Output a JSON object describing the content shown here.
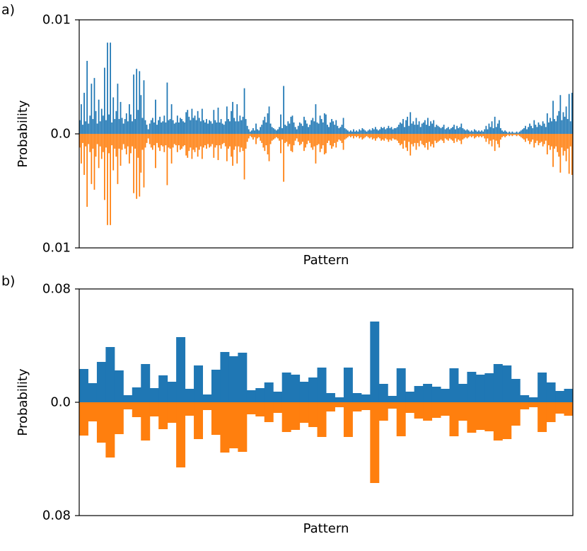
{
  "figure": {
    "panels": [
      {
        "label": "a)"
      },
      {
        "label": "b)"
      }
    ]
  },
  "colors": {
    "series_top": "#1f77b4",
    "series_bottom": "#ff7f0e"
  },
  "chart_data": [
    {
      "type": "bar",
      "panel": "a)",
      "xlabel": "Pattern",
      "ylabel": "Probability",
      "x_ticks": "none",
      "ylim": [
        -0.01,
        0.01
      ],
      "y_tick_labels": [
        "0.01",
        "0.0",
        "0.01"
      ],
      "grid": false,
      "legend": "none",
      "mirrored": true,
      "series": [
        {
          "color": "#1f77b4",
          "direction": "up",
          "values": [
            0.0012,
            0.0026,
            0.0008,
            0.0036,
            0.0011,
            0.0064,
            0.0009,
            0.0016,
            0.0044,
            0.0013,
            0.0049,
            0.002,
            0.0009,
            0.003,
            0.0011,
            0.0022,
            0.0016,
            0.0058,
            0.0012,
            0.008,
            0.0017,
            0.008,
            0.001,
            0.0032,
            0.0013,
            0.002,
            0.0044,
            0.0013,
            0.0028,
            0.0014,
            0.0009,
            0.0013,
            0.0018,
            0.0011,
            0.0026,
            0.0017,
            0.0011,
            0.0052,
            0.0013,
            0.0057,
            0.0021,
            0.0055,
            0.0034,
            0.0014,
            0.0047,
            0.0012,
            0.0008,
            0.0004,
            0.0009,
            0.0012,
            0.0014,
            0.001,
            0.003,
            0.0008,
            0.0012,
            0.0015,
            0.001,
            0.0011,
            0.0016,
            0.001,
            0.0045,
            0.0012,
            0.0013,
            0.0026,
            0.0012,
            0.0009,
            0.001,
            0.0016,
            0.001,
            0.0014,
            0.0013,
            0.0011,
            0.001,
            0.0019,
            0.0021,
            0.0015,
            0.0012,
            0.0022,
            0.0014,
            0.0016,
            0.0012,
            0.002,
            0.0014,
            0.0011,
            0.0022,
            0.0012,
            0.001,
            0.0013,
            0.0009,
            0.0012,
            0.0011,
            0.0009,
            0.0021,
            0.0012,
            0.001,
            0.0023,
            0.001,
            0.0013,
            0.0009,
            0.0008,
            0.0011,
            0.0024,
            0.0013,
            0.0011,
            0.002,
            0.0028,
            0.0014,
            0.0011,
            0.0026,
            0.0011,
            0.0016,
            0.0012,
            0.0015,
            0.004,
            0.0013,
            0.0007,
            0.0004,
            0.0002,
            0.0003,
            0.0005,
            0.0003,
            0.0009,
            0.0004,
            0.0003,
            0.0006,
            0.0008,
            0.0012,
            0.0015,
            0.001,
            0.0018,
            0.0024,
            0.0009,
            0.0006,
            0.0005,
            0.0004,
            0.0003,
            0.0004,
            0.0006,
            0.0017,
            0.0005,
            0.0042,
            0.0008,
            0.0007,
            0.0011,
            0.0009,
            0.0015,
            0.0016,
            0.001,
            0.0006,
            0.0004,
            0.0007,
            0.001,
            0.0009,
            0.0007,
            0.0015,
            0.0012,
            0.0009,
            0.0006,
            0.0008,
            0.0012,
            0.0014,
            0.0011,
            0.0026,
            0.001,
            0.0009,
            0.0016,
            0.0013,
            0.001,
            0.0018,
            0.0017,
            0.0008,
            0.0006,
            0.001,
            0.0013,
            0.0011,
            0.0008,
            0.0012,
            0.0007,
            0.0005,
            0.0006,
            0.0008,
            0.0014,
            0.0005,
            0.0004,
            0.0003,
            0.0002,
            0.0003,
            0.0002,
            0.0004,
            0.0002,
            0.0003,
            0.0002,
            0.0004,
            0.0003,
            0.0005,
            0.0004,
            0.0003,
            0.0002,
            0.0003,
            0.0004,
            0.0003,
            0.0005,
            0.0004,
            0.0006,
            0.0004,
            0.0003,
            0.0004,
            0.0006,
            0.0005,
            0.0006,
            0.0004,
            0.0005,
            0.0007,
            0.0005,
            0.0006,
            0.0004,
            0.0005,
            0.0005,
            0.0006,
            0.0008,
            0.001,
            0.0009,
            0.0013,
            0.0006,
            0.0012,
            0.0015,
            0.0007,
            0.0019,
            0.0009,
            0.0011,
            0.0008,
            0.0014,
            0.0008,
            0.0011,
            0.0006,
            0.0009,
            0.001,
            0.0012,
            0.0008,
            0.0014,
            0.0007,
            0.0011,
            0.0009,
            0.0012,
            0.0006,
            0.0008,
            0.0007,
            0.0006,
            0.0005,
            0.0006,
            0.0008,
            0.0004,
            0.0005,
            0.0006,
            0.0004,
            0.0005,
            0.0006,
            0.0008,
            0.0004,
            0.0007,
            0.0005,
            0.0006,
            0.0009,
            0.0005,
            0.0004,
            0.0003,
            0.0004,
            0.0003,
            0.0002,
            0.0003,
            0.0002,
            0.0004,
            0.0003,
            0.0002,
            0.0003,
            0.0002,
            0.0003,
            0.0002,
            0.0004,
            0.0007,
            0.0004,
            0.0009,
            0.0006,
            0.0011,
            0.0005,
            0.0015,
            0.0006,
            0.0009,
            0.0012,
            0.0005,
            0.0003,
            0.0002,
            0.0003,
            0.0002,
            0.0001,
            0.0002,
            0.0001,
            0.0002,
            0.0001,
            0.0001,
            0.0002,
            0.0001,
            0.0002,
            0.0003,
            0.0004,
            0.0005,
            0.0007,
            0.0004,
            0.0006,
            0.0009,
            0.0007,
            0.0005,
            0.0012,
            0.0008,
            0.0006,
            0.001,
            0.0008,
            0.0007,
            0.0011,
            0.0009,
            0.0006,
            0.0018,
            0.001,
            0.0014,
            0.0011,
            0.0029,
            0.0013,
            0.0011,
            0.0016,
            0.002,
            0.0034,
            0.0012,
            0.0019,
            0.0015,
            0.0024,
            0.0013,
            0.0035,
            0.0011,
            0.0036
          ]
        },
        {
          "color": "#ff7f0e",
          "direction": "down",
          "values": [
            0.0012,
            0.0026,
            0.0008,
            0.0036,
            0.0011,
            0.0064,
            0.0009,
            0.0016,
            0.0044,
            0.0013,
            0.0049,
            0.002,
            0.0009,
            0.003,
            0.0011,
            0.0022,
            0.0016,
            0.0058,
            0.0012,
            0.008,
            0.0017,
            0.008,
            0.001,
            0.0032,
            0.0013,
            0.002,
            0.0044,
            0.0013,
            0.0028,
            0.0014,
            0.0009,
            0.0013,
            0.0018,
            0.0011,
            0.0026,
            0.0017,
            0.0011,
            0.0052,
            0.0013,
            0.0057,
            0.0021,
            0.0055,
            0.0034,
            0.0014,
            0.0047,
            0.0012,
            0.0008,
            0.0004,
            0.0009,
            0.0012,
            0.0014,
            0.001,
            0.003,
            0.0008,
            0.0012,
            0.0015,
            0.001,
            0.0011,
            0.0016,
            0.001,
            0.0045,
            0.0012,
            0.0013,
            0.0026,
            0.0012,
            0.0009,
            0.001,
            0.0016,
            0.001,
            0.0014,
            0.0013,
            0.0011,
            0.001,
            0.0019,
            0.0021,
            0.0015,
            0.0012,
            0.0022,
            0.0014,
            0.0016,
            0.0012,
            0.002,
            0.0014,
            0.0011,
            0.0022,
            0.0012,
            0.001,
            0.0013,
            0.0009,
            0.0012,
            0.0011,
            0.0009,
            0.0021,
            0.0012,
            0.001,
            0.0023,
            0.001,
            0.0013,
            0.0009,
            0.0008,
            0.0011,
            0.0024,
            0.0013,
            0.0011,
            0.002,
            0.0028,
            0.0014,
            0.0011,
            0.0026,
            0.0011,
            0.0016,
            0.0012,
            0.0015,
            0.004,
            0.0013,
            0.0007,
            0.0004,
            0.0002,
            0.0003,
            0.0005,
            0.0003,
            0.0009,
            0.0004,
            0.0003,
            0.0006,
            0.0008,
            0.0012,
            0.0015,
            0.001,
            0.0018,
            0.0024,
            0.0009,
            0.0006,
            0.0005,
            0.0004,
            0.0003,
            0.0004,
            0.0006,
            0.0017,
            0.0005,
            0.0042,
            0.0008,
            0.0007,
            0.0011,
            0.0009,
            0.0015,
            0.0016,
            0.001,
            0.0006,
            0.0004,
            0.0007,
            0.001,
            0.0009,
            0.0007,
            0.0015,
            0.0012,
            0.0009,
            0.0006,
            0.0008,
            0.0012,
            0.0014,
            0.0011,
            0.0026,
            0.001,
            0.0009,
            0.0016,
            0.0013,
            0.001,
            0.0018,
            0.0017,
            0.0008,
            0.0006,
            0.001,
            0.0013,
            0.0011,
            0.0008,
            0.0012,
            0.0007,
            0.0005,
            0.0006,
            0.0008,
            0.0014,
            0.0005,
            0.0004,
            0.0003,
            0.0002,
            0.0003,
            0.0002,
            0.0004,
            0.0002,
            0.0003,
            0.0002,
            0.0004,
            0.0003,
            0.0005,
            0.0004,
            0.0003,
            0.0002,
            0.0003,
            0.0004,
            0.0003,
            0.0005,
            0.0004,
            0.0006,
            0.0004,
            0.0003,
            0.0004,
            0.0006,
            0.0005,
            0.0006,
            0.0004,
            0.0005,
            0.0007,
            0.0005,
            0.0006,
            0.0004,
            0.0005,
            0.0005,
            0.0006,
            0.0008,
            0.001,
            0.0009,
            0.0013,
            0.0006,
            0.0012,
            0.0015,
            0.0007,
            0.0019,
            0.0009,
            0.0011,
            0.0008,
            0.0014,
            0.0008,
            0.0011,
            0.0006,
            0.0009,
            0.001,
            0.0012,
            0.0008,
            0.0014,
            0.0007,
            0.0011,
            0.0009,
            0.0012,
            0.0006,
            0.0008,
            0.0007,
            0.0006,
            0.0005,
            0.0006,
            0.0008,
            0.0004,
            0.0005,
            0.0006,
            0.0004,
            0.0005,
            0.0006,
            0.0008,
            0.0004,
            0.0007,
            0.0005,
            0.0006,
            0.0009,
            0.0005,
            0.0004,
            0.0003,
            0.0004,
            0.0003,
            0.0002,
            0.0003,
            0.0002,
            0.0004,
            0.0003,
            0.0002,
            0.0003,
            0.0002,
            0.0003,
            0.0002,
            0.0004,
            0.0007,
            0.0004,
            0.0009,
            0.0006,
            0.0011,
            0.0005,
            0.0015,
            0.0006,
            0.0009,
            0.0012,
            0.0005,
            0.0003,
            0.0002,
            0.0003,
            0.0002,
            0.0001,
            0.0002,
            0.0001,
            0.0002,
            0.0001,
            0.0001,
            0.0002,
            0.0001,
            0.0002,
            0.0003,
            0.0004,
            0.0005,
            0.0007,
            0.0004,
            0.0006,
            0.0009,
            0.0007,
            0.0005,
            0.0012,
            0.0008,
            0.0006,
            0.001,
            0.0008,
            0.0007,
            0.0011,
            0.0009,
            0.0006,
            0.0018,
            0.001,
            0.0014,
            0.0011,
            0.0029,
            0.0013,
            0.0011,
            0.0016,
            0.002,
            0.0034,
            0.0012,
            0.0019,
            0.0015,
            0.0024,
            0.0013,
            0.0035,
            0.0011,
            0.0036
          ]
        }
      ]
    },
    {
      "type": "bar",
      "panel": "b)",
      "xlabel": "Pattern",
      "ylabel": "Probability",
      "x_ticks": "none",
      "ylim": [
        -0.08,
        0.08
      ],
      "y_tick_labels": [
        "0.08",
        "0.0",
        "0.08"
      ],
      "grid": false,
      "legend": "none",
      "mirrored": true,
      "series": [
        {
          "color": "#1f77b4",
          "direction": "up",
          "values": [
            0.0235,
            0.0135,
            0.0285,
            0.039,
            0.0225,
            0.005,
            0.0105,
            0.027,
            0.01,
            0.019,
            0.0145,
            0.046,
            0.0095,
            0.026,
            0.0055,
            0.023,
            0.0355,
            0.0325,
            0.035,
            0.0085,
            0.01,
            0.014,
            0.0075,
            0.021,
            0.0195,
            0.0145,
            0.0175,
            0.0245,
            0.0065,
            0.0035,
            0.0245,
            0.0065,
            0.0055,
            0.057,
            0.013,
            0.0045,
            0.024,
            0.0075,
            0.0115,
            0.013,
            0.011,
            0.0095,
            0.024,
            0.013,
            0.0215,
            0.0195,
            0.0205,
            0.027,
            0.026,
            0.0165,
            0.005,
            0.0035,
            0.021,
            0.014,
            0.008,
            0.0095
          ]
        },
        {
          "color": "#ff7f0e",
          "direction": "down",
          "values": [
            0.0235,
            0.0135,
            0.0285,
            0.039,
            0.0225,
            0.005,
            0.0105,
            0.027,
            0.01,
            0.019,
            0.0145,
            0.046,
            0.0095,
            0.026,
            0.0055,
            0.023,
            0.0355,
            0.0325,
            0.035,
            0.0085,
            0.01,
            0.014,
            0.0075,
            0.021,
            0.0195,
            0.0145,
            0.0175,
            0.0245,
            0.0065,
            0.0035,
            0.0245,
            0.0065,
            0.0055,
            0.057,
            0.013,
            0.0045,
            0.024,
            0.0075,
            0.0115,
            0.013,
            0.011,
            0.0095,
            0.024,
            0.013,
            0.0215,
            0.0195,
            0.0205,
            0.027,
            0.026,
            0.0165,
            0.005,
            0.0035,
            0.021,
            0.014,
            0.008,
            0.0095
          ]
        }
      ]
    }
  ]
}
